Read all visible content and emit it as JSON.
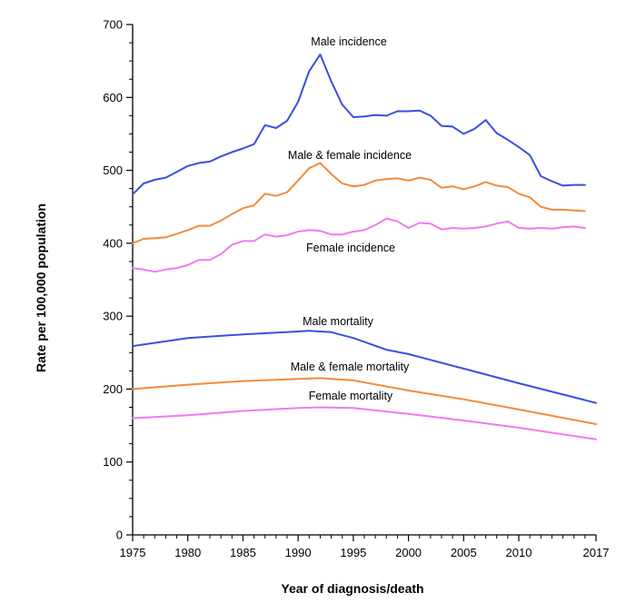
{
  "chart_data": {
    "type": "line",
    "title": "",
    "xlabel": "Year of diagnosis/death",
    "ylabel": "Rate per 100,000 population",
    "xlim": [
      1975,
      2017
    ],
    "ylim": [
      0,
      700
    ],
    "x_ticks": [
      1975,
      1980,
      1985,
      1990,
      1995,
      2000,
      2005,
      2010,
      2017
    ],
    "y_ticks": [
      0,
      100,
      200,
      300,
      400,
      500,
      600,
      700
    ],
    "grid": false,
    "legend": "none (series labelled inline)",
    "series": [
      {
        "name": "Male incidence",
        "color": "#3b4fe0",
        "x": [
          1975,
          1976,
          1977,
          1978,
          1979,
          1980,
          1981,
          1982,
          1983,
          1984,
          1985,
          1986,
          1987,
          1988,
          1989,
          1990,
          1991,
          1992,
          1993,
          1994,
          1995,
          1996,
          1997,
          1998,
          1999,
          2000,
          2001,
          2002,
          2003,
          2004,
          2005,
          2006,
          2007,
          2008,
          2009,
          2010,
          2011,
          2012,
          2013,
          2014,
          2015,
          2016
        ],
        "values": [
          467,
          482,
          487,
          490,
          498,
          506,
          510,
          512,
          519,
          525,
          530,
          536,
          562,
          558,
          568,
          594,
          636,
          659,
          622,
          590,
          573,
          574,
          576,
          575,
          581,
          581,
          582,
          575,
          561,
          560,
          550,
          557,
          569,
          551,
          542,
          532,
          521,
          492,
          485,
          479,
          480,
          480
        ]
      },
      {
        "name": "Male & female incidence",
        "color": "#f28a3c",
        "x": [
          1975,
          1976,
          1977,
          1978,
          1979,
          1980,
          1981,
          1982,
          1983,
          1984,
          1985,
          1986,
          1987,
          1988,
          1989,
          1990,
          1991,
          1992,
          1993,
          1994,
          1995,
          1996,
          1997,
          1998,
          1999,
          2000,
          2001,
          2002,
          2003,
          2004,
          2005,
          2006,
          2007,
          2008,
          2009,
          2010,
          2011,
          2012,
          2013,
          2014,
          2015,
          2016
        ],
        "values": [
          400,
          406,
          407,
          408,
          413,
          418,
          424,
          424,
          431,
          440,
          448,
          452,
          468,
          465,
          470,
          486,
          503,
          510,
          495,
          482,
          478,
          480,
          486,
          488,
          489,
          486,
          490,
          487,
          476,
          478,
          474,
          478,
          484,
          479,
          477,
          468,
          463,
          450,
          446,
          446,
          445,
          444
        ]
      },
      {
        "name": "Female incidence",
        "color": "#f07af0",
        "x": [
          1975,
          1976,
          1977,
          1978,
          1979,
          1980,
          1981,
          1982,
          1983,
          1984,
          1985,
          1986,
          1987,
          1988,
          1989,
          1990,
          1991,
          1992,
          1993,
          1994,
          1995,
          1996,
          1997,
          1998,
          1999,
          2000,
          2001,
          2002,
          2003,
          2004,
          2005,
          2006,
          2007,
          2008,
          2009,
          2010,
          2011,
          2012,
          2013,
          2014,
          2015,
          2016
        ],
        "values": [
          366,
          364,
          361,
          364,
          366,
          370,
          377,
          377,
          385,
          398,
          403,
          403,
          412,
          409,
          411,
          416,
          418,
          417,
          412,
          412,
          416,
          418,
          425,
          434,
          430,
          421,
          428,
          427,
          419,
          421,
          420,
          421,
          423,
          427,
          430,
          421,
          420,
          421,
          420,
          422,
          423,
          421
        ]
      },
      {
        "name": "Male mortality",
        "color": "#3b4fe0",
        "x": [
          1975,
          1980,
          1985,
          1990,
          1991,
          1993,
          1995,
          1998,
          2000,
          2002,
          2005,
          2010,
          2017
        ],
        "values": [
          259,
          270,
          275,
          279,
          280,
          278,
          270,
          254,
          248,
          240,
          228,
          208,
          181
        ]
      },
      {
        "name": "Male & female mortality",
        "color": "#f28a3c",
        "x": [
          1975,
          1980,
          1985,
          1990,
          1992,
          1995,
          2000,
          2005,
          2010,
          2017
        ],
        "values": [
          200,
          206,
          211,
          214,
          215,
          212,
          198,
          186,
          172,
          152
        ]
      },
      {
        "name": "Female mortality",
        "color": "#f07af0",
        "x": [
          1975,
          1980,
          1985,
          1990,
          1992,
          1995,
          2000,
          2005,
          2010,
          2017
        ],
        "values": [
          160,
          164,
          170,
          174,
          175,
          174,
          166,
          157,
          147,
          131
        ]
      }
    ]
  }
}
